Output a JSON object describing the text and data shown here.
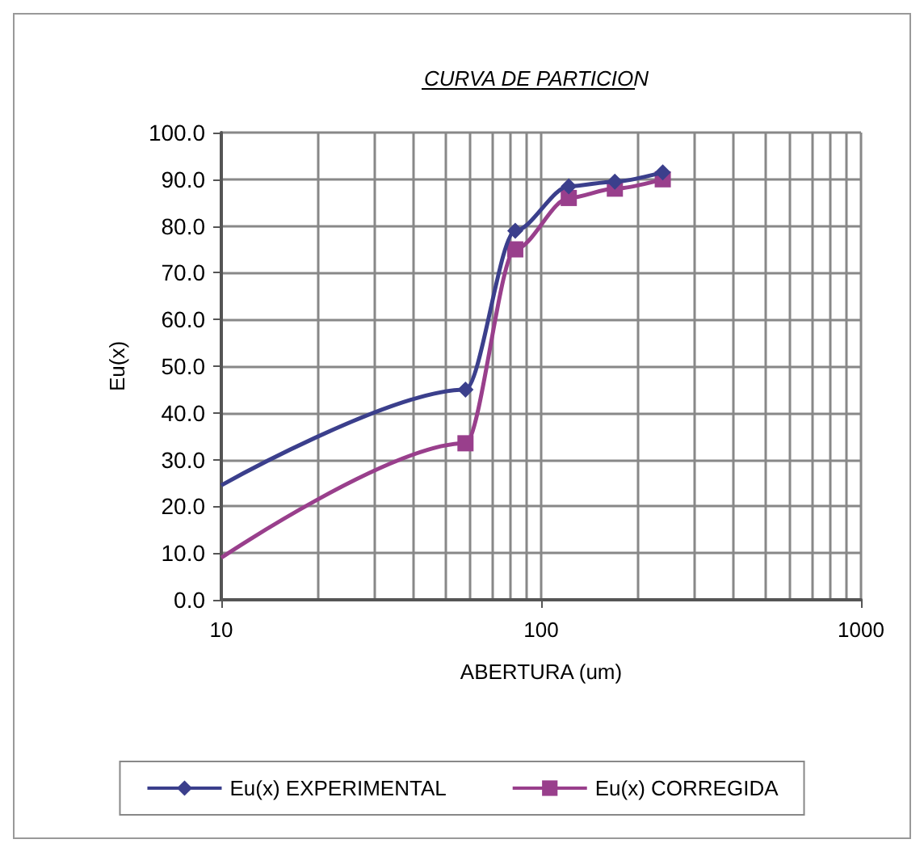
{
  "chart_data": {
    "type": "line",
    "title": "CURVA DE PARTICION",
    "xlabel": "ABERTURA (um)",
    "ylabel": "Eu(x)",
    "log": "x",
    "grid": true,
    "legend": "bottom",
    "xlim": [
      10,
      1000
    ],
    "xticks": [
      10,
      100,
      1000
    ],
    "ylim": [
      0,
      100
    ],
    "yticks": [
      {
        "value": 0,
        "label": "0.0"
      },
      {
        "value": 10,
        "label": "10.0"
      },
      {
        "value": 20,
        "label": "20.0"
      },
      {
        "value": 30,
        "label": "30.0"
      },
      {
        "value": 40,
        "label": "40.0"
      },
      {
        "value": 50,
        "label": "50.0"
      },
      {
        "value": 60,
        "label": "60.0"
      },
      {
        "value": 70,
        "label": "70.0"
      },
      {
        "value": 80,
        "label": "80.0"
      },
      {
        "value": 90,
        "label": "90.0"
      },
      {
        "value": 100,
        "label": "100.0"
      }
    ],
    "x": [
      10,
      58,
      83,
      122,
      170,
      240
    ],
    "series": [
      {
        "name": "Eu(x) EXPERIMENTAL",
        "color": "#3b3f8c",
        "marker": "diamond",
        "values": [
          24.5,
          45,
          79,
          88.5,
          89.5,
          91.5
        ]
      },
      {
        "name": "Eu(x) CORREGIDA",
        "color": "#993f8c",
        "marker": "square",
        "values": [
          9,
          33.5,
          75,
          86,
          88,
          90
        ]
      }
    ]
  }
}
